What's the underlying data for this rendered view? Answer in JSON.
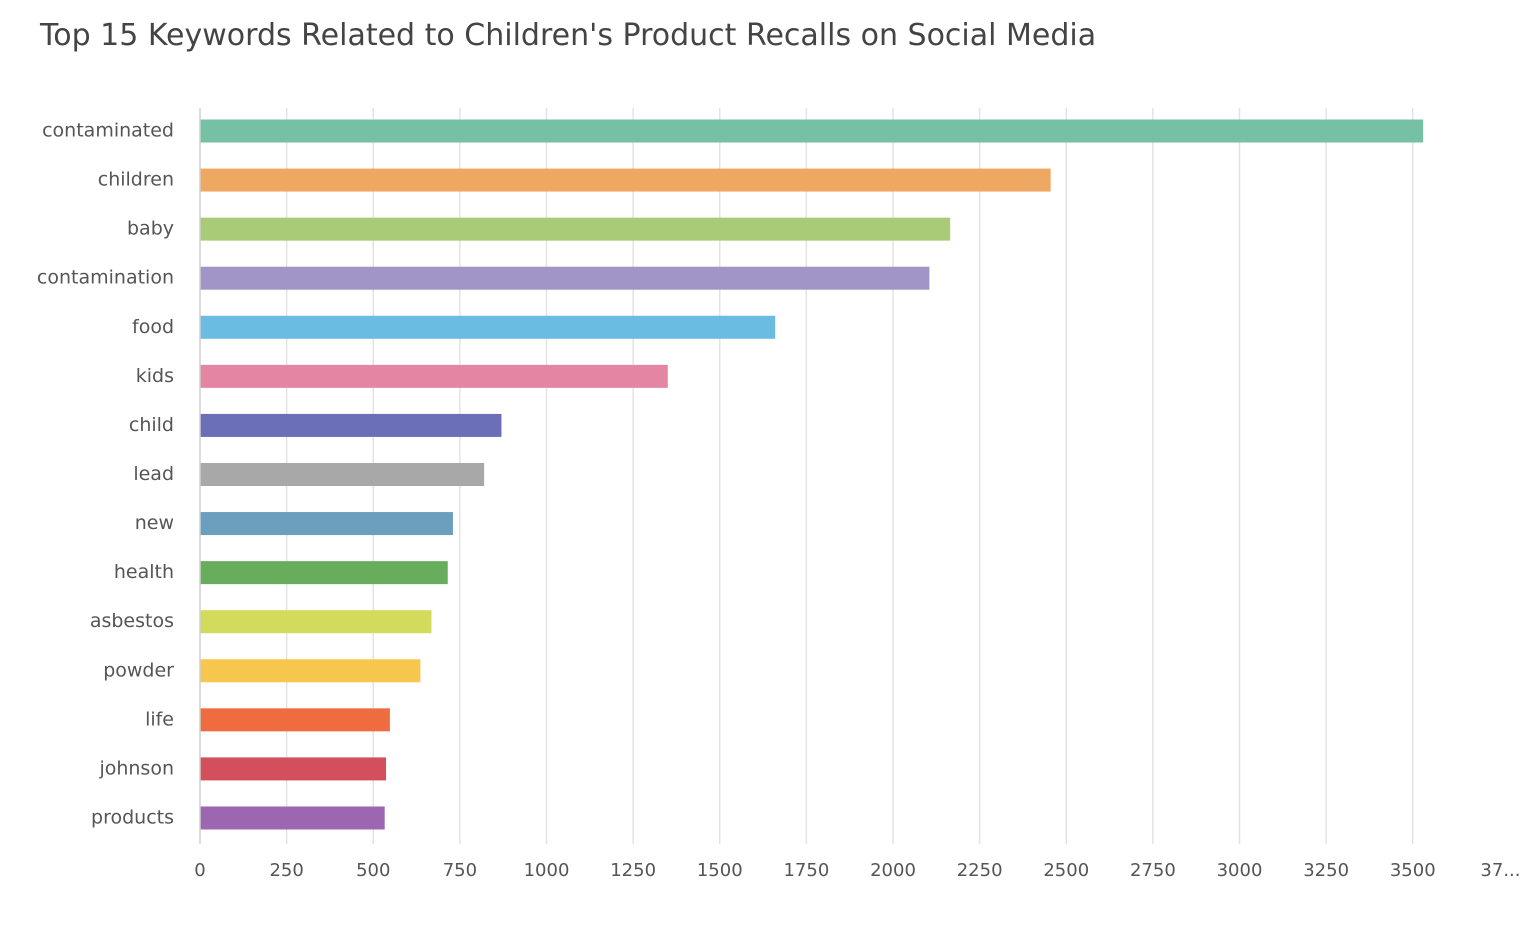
{
  "chart_data": {
    "type": "bar",
    "orientation": "horizontal",
    "title": "Top 15 Keywords Related to Children's Product Recalls on Social Media",
    "xlabel": "",
    "ylabel": "",
    "categories": [
      "contaminated",
      "children",
      "baby",
      "contamination",
      "food",
      "kids",
      "child",
      "lead",
      "new",
      "health",
      "asbestos",
      "powder",
      "life",
      "johnson",
      "products"
    ],
    "values": [
      3530,
      2455,
      2165,
      2105,
      1660,
      1350,
      870,
      820,
      730,
      715,
      668,
      636,
      548,
      537,
      533
    ],
    "colors": [
      "#76c1a5",
      "#efa862",
      "#a9cb77",
      "#a095c4",
      "#6abce2",
      "#e585a4",
      "#6b6fb8",
      "#a8a8a8",
      "#6a9fbd",
      "#68ad5c",
      "#d2db5b",
      "#f6c64d",
      "#ee6c3f",
      "#d34f5c",
      "#9d66b0"
    ],
    "xticks": [
      "0",
      "250",
      "500",
      "750",
      "1000",
      "1250",
      "1500",
      "1750",
      "2000",
      "2250",
      "2500",
      "2750",
      "3000",
      "3250",
      "3500",
      "37..."
    ],
    "xlim": [
      0,
      3750
    ],
    "grid": true,
    "legend": "none"
  }
}
